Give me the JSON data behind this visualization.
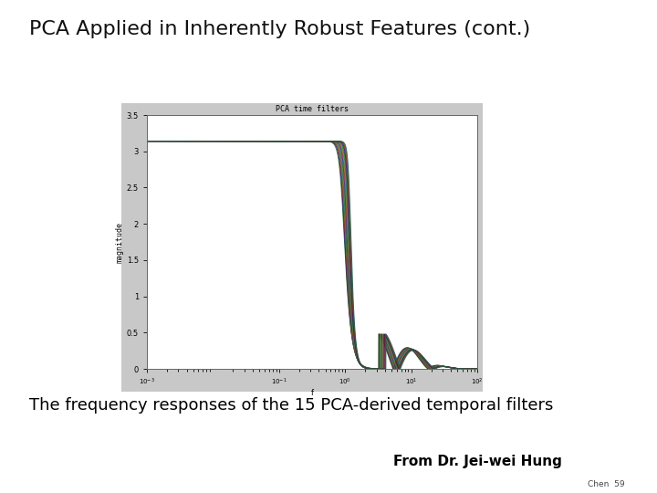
{
  "title": "PCA Applied in Inherently Robust Features (cont.)",
  "caption": "The frequency responses of the 15 PCA-derived temporal filters",
  "attribution": "From Dr. Jei-wei Hung",
  "plot_title": "PCA time filters",
  "ylabel": "magnitude",
  "xlabel": "f",
  "bg_color": "#ffffff",
  "gray_bg_color": "#c8c8c8",
  "inner_bg_color": "#ffffff",
  "title_fontsize": 16,
  "caption_fontsize": 13,
  "attr_fontsize": 11,
  "flat_level": 3.14,
  "cutoff_base": 1.0,
  "n_filters": 15
}
